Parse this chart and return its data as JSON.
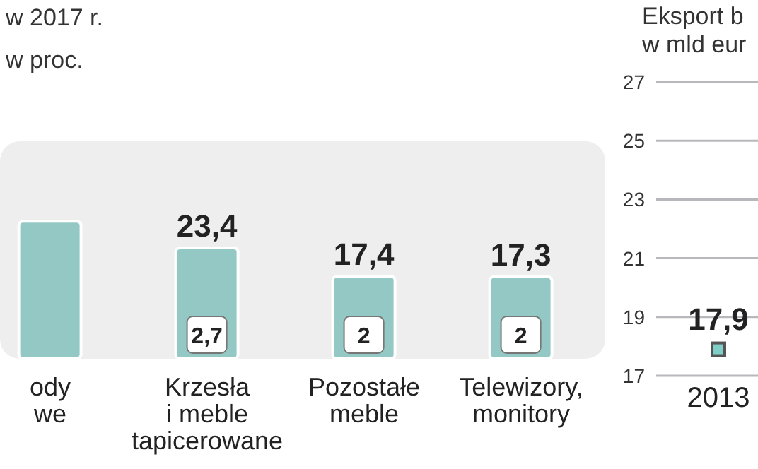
{
  "chart_data": [
    {
      "type": "bar",
      "title": "w 2017 r.",
      "subtitle": "w proc.",
      "categories": [
        "ody\nwe",
        "Krzesła\ni meble\ntapicerowane",
        "Pozostałe\nmeble",
        "Telewizory,\nmonitory"
      ],
      "values": [
        29,
        23.4,
        17.4,
        17.3
      ],
      "value_labels": [
        null,
        "23,4",
        "17,4",
        "17,3"
      ],
      "color": "#93c8c4",
      "annotations": [
        {
          "text": "2,7",
          "x": "Krzesła\ni meble\ntapicerowane"
        },
        {
          "text": "2",
          "x": "Pozostałe\nmeble"
        },
        {
          "text": "2",
          "x": "Telewizory,\nmonitory"
        }
      ]
    },
    {
      "type": "line",
      "title": "Eksport b",
      "subtitle": "w mld eur",
      "categories": [
        "2013"
      ],
      "values": [
        17.9
      ],
      "value_labels": [
        "17,9"
      ],
      "color": "#7fcfc8",
      "marker": "square",
      "ylim": [
        17,
        27
      ],
      "yticks": [
        17,
        19,
        21,
        23,
        25,
        27
      ],
      "grid": "y"
    }
  ]
}
